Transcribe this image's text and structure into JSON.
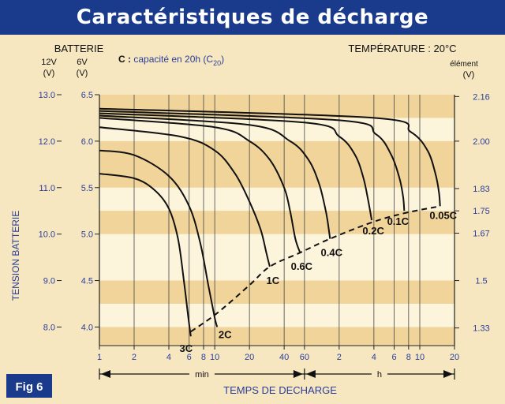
{
  "title": "Caractéristiques de décharge",
  "fig_label": "Fig 6",
  "battery_label": "BATTERIE",
  "temperature_label": "TEMPÉRATURE : 20°C",
  "capacity_note_prefix": "C :",
  "capacity_note": "capacité en 20h (C",
  "capacity_note_sub": "20",
  "capacity_note_close": ")",
  "left_header_12v": "12V",
  "left_header_6v": "6V",
  "unit_v": "(V)",
  "right_header": "élément",
  "right_unit": "(V)",
  "colors": {
    "title_bg": "#1a3a8c",
    "accent_text": "#2a3d9a",
    "band_dark": "#f0d49a",
    "band_light": "#fdf4dc",
    "curve": "#111111"
  },
  "chart_data": {
    "type": "line",
    "title": "Caractéristiques de décharge",
    "xlabel": "TEMPS DE DECHARGE",
    "ylabel": "TENSION BATTERIE",
    "x_scale": "log",
    "x_unit_note": "minutes (1–60 min, then hours)",
    "x_ticks": [
      {
        "minutes": 1,
        "label": "1"
      },
      {
        "minutes": 2,
        "label": "2"
      },
      {
        "minutes": 4,
        "label": "4"
      },
      {
        "minutes": 6,
        "label": "6"
      },
      {
        "minutes": 8,
        "label": "8"
      },
      {
        "minutes": 10,
        "label": "10"
      },
      {
        "minutes": 20,
        "label": "20"
      },
      {
        "minutes": 40,
        "label": "40"
      },
      {
        "minutes": 60,
        "label": "60"
      },
      {
        "minutes": 120,
        "label": "2"
      },
      {
        "minutes": 240,
        "label": "4"
      },
      {
        "minutes": 360,
        "label": "6"
      },
      {
        "minutes": 480,
        "label": "8"
      },
      {
        "minutes": 600,
        "label": "10"
      },
      {
        "minutes": 1200,
        "label": "20"
      }
    ],
    "x_range_labels": {
      "min": "min",
      "h": "h"
    },
    "ylim_12v": [
      7.6,
      13.0
    ],
    "y_ticks_12v": [
      "13.0",
      "12.0",
      "11.0",
      "10.0",
      "9.0",
      "8.0"
    ],
    "y_ticks_6v": [
      "6.5",
      "6.0",
      "5.5",
      "5.0",
      "4.5",
      "4.0"
    ],
    "y_ticks_cell": [
      {
        "v12": 12.96,
        "label": "2.16"
      },
      {
        "v12": 12.0,
        "label": "2.00"
      },
      {
        "v12": 10.98,
        "label": "1.83"
      },
      {
        "v12": 10.5,
        "label": "1.75"
      },
      {
        "v12": 10.02,
        "label": "1.67"
      },
      {
        "v12": 9.0,
        "label": "1.5"
      },
      {
        "v12": 7.98,
        "label": "1.33"
      }
    ],
    "series": [
      {
        "name": "3C",
        "points": [
          [
            1,
            11.3
          ],
          [
            2,
            11.2
          ],
          [
            3,
            10.95
          ],
          [
            4,
            10.55
          ],
          [
            4.8,
            9.9
          ],
          [
            5.4,
            9.0
          ],
          [
            5.9,
            8.2
          ],
          [
            6.2,
            7.8
          ]
        ]
      },
      {
        "name": "2C",
        "points": [
          [
            1,
            11.8
          ],
          [
            2,
            11.7
          ],
          [
            4,
            11.25
          ],
          [
            6,
            10.6
          ],
          [
            7.5,
            9.8
          ],
          [
            8.8,
            8.9
          ],
          [
            10,
            8.2
          ],
          [
            10.5,
            8.0
          ]
        ]
      },
      {
        "name": "1C",
        "points": [
          [
            1,
            12.3
          ],
          [
            5,
            12.1
          ],
          [
            10,
            11.8
          ],
          [
            15,
            11.3
          ],
          [
            20,
            10.7
          ],
          [
            25,
            10.1
          ],
          [
            28,
            9.6
          ],
          [
            30,
            9.3
          ]
        ]
      },
      {
        "name": "0.6C",
        "points": [
          [
            1,
            12.5
          ],
          [
            10,
            12.3
          ],
          [
            20,
            12.0
          ],
          [
            30,
            11.6
          ],
          [
            40,
            11.0
          ],
          [
            45,
            10.5
          ],
          [
            50,
            9.9
          ],
          [
            55,
            9.6
          ]
        ]
      },
      {
        "name": "0.4C",
        "points": [
          [
            1,
            12.55
          ],
          [
            20,
            12.35
          ],
          [
            45,
            12.0
          ],
          [
            65,
            11.6
          ],
          [
            80,
            11.1
          ],
          [
            90,
            10.6
          ],
          [
            95,
            10.3
          ],
          [
            100,
            9.9
          ]
        ]
      },
      {
        "name": "0.2C",
        "points": [
          [
            1,
            12.6
          ],
          [
            60,
            12.4
          ],
          [
            120,
            12.1
          ],
          [
            165,
            11.7
          ],
          [
            195,
            11.2
          ],
          [
            215,
            10.7
          ],
          [
            230,
            10.3
          ]
        ]
      },
      {
        "name": "0.1C",
        "points": [
          [
            1,
            12.65
          ],
          [
            120,
            12.45
          ],
          [
            250,
            12.15
          ],
          [
            340,
            11.7
          ],
          [
            400,
            11.2
          ],
          [
            430,
            10.8
          ],
          [
            440,
            10.5
          ]
        ]
      },
      {
        "name": "0.05C",
        "points": [
          [
            1,
            12.7
          ],
          [
            240,
            12.5
          ],
          [
            500,
            12.2
          ],
          [
            700,
            11.8
          ],
          [
            820,
            11.3
          ],
          [
            880,
            10.9
          ],
          [
            900,
            10.6
          ]
        ]
      }
    ],
    "end_of_discharge_curve": [
      [
        6.2,
        7.9
      ],
      [
        10.5,
        8.3
      ],
      [
        20,
        8.9
      ],
      [
        30,
        9.3
      ],
      [
        55,
        9.6
      ],
      [
        100,
        9.9
      ],
      [
        230,
        10.25
      ],
      [
        440,
        10.45
      ],
      [
        900,
        10.6
      ]
    ],
    "series_labels": [
      {
        "name": "3C",
        "label": "3C"
      },
      {
        "name": "2C",
        "label": "2C"
      },
      {
        "name": "1C",
        "label": "1C"
      },
      {
        "name": "0.6C",
        "label": "0.6C"
      },
      {
        "name": "0.4C",
        "label": "0.4C"
      },
      {
        "name": "0.2C",
        "label": "0.2C"
      },
      {
        "name": "0.1C",
        "label": "0.1C"
      },
      {
        "name": "0.05C",
        "label": "0.05C"
      }
    ],
    "grid": true
  }
}
